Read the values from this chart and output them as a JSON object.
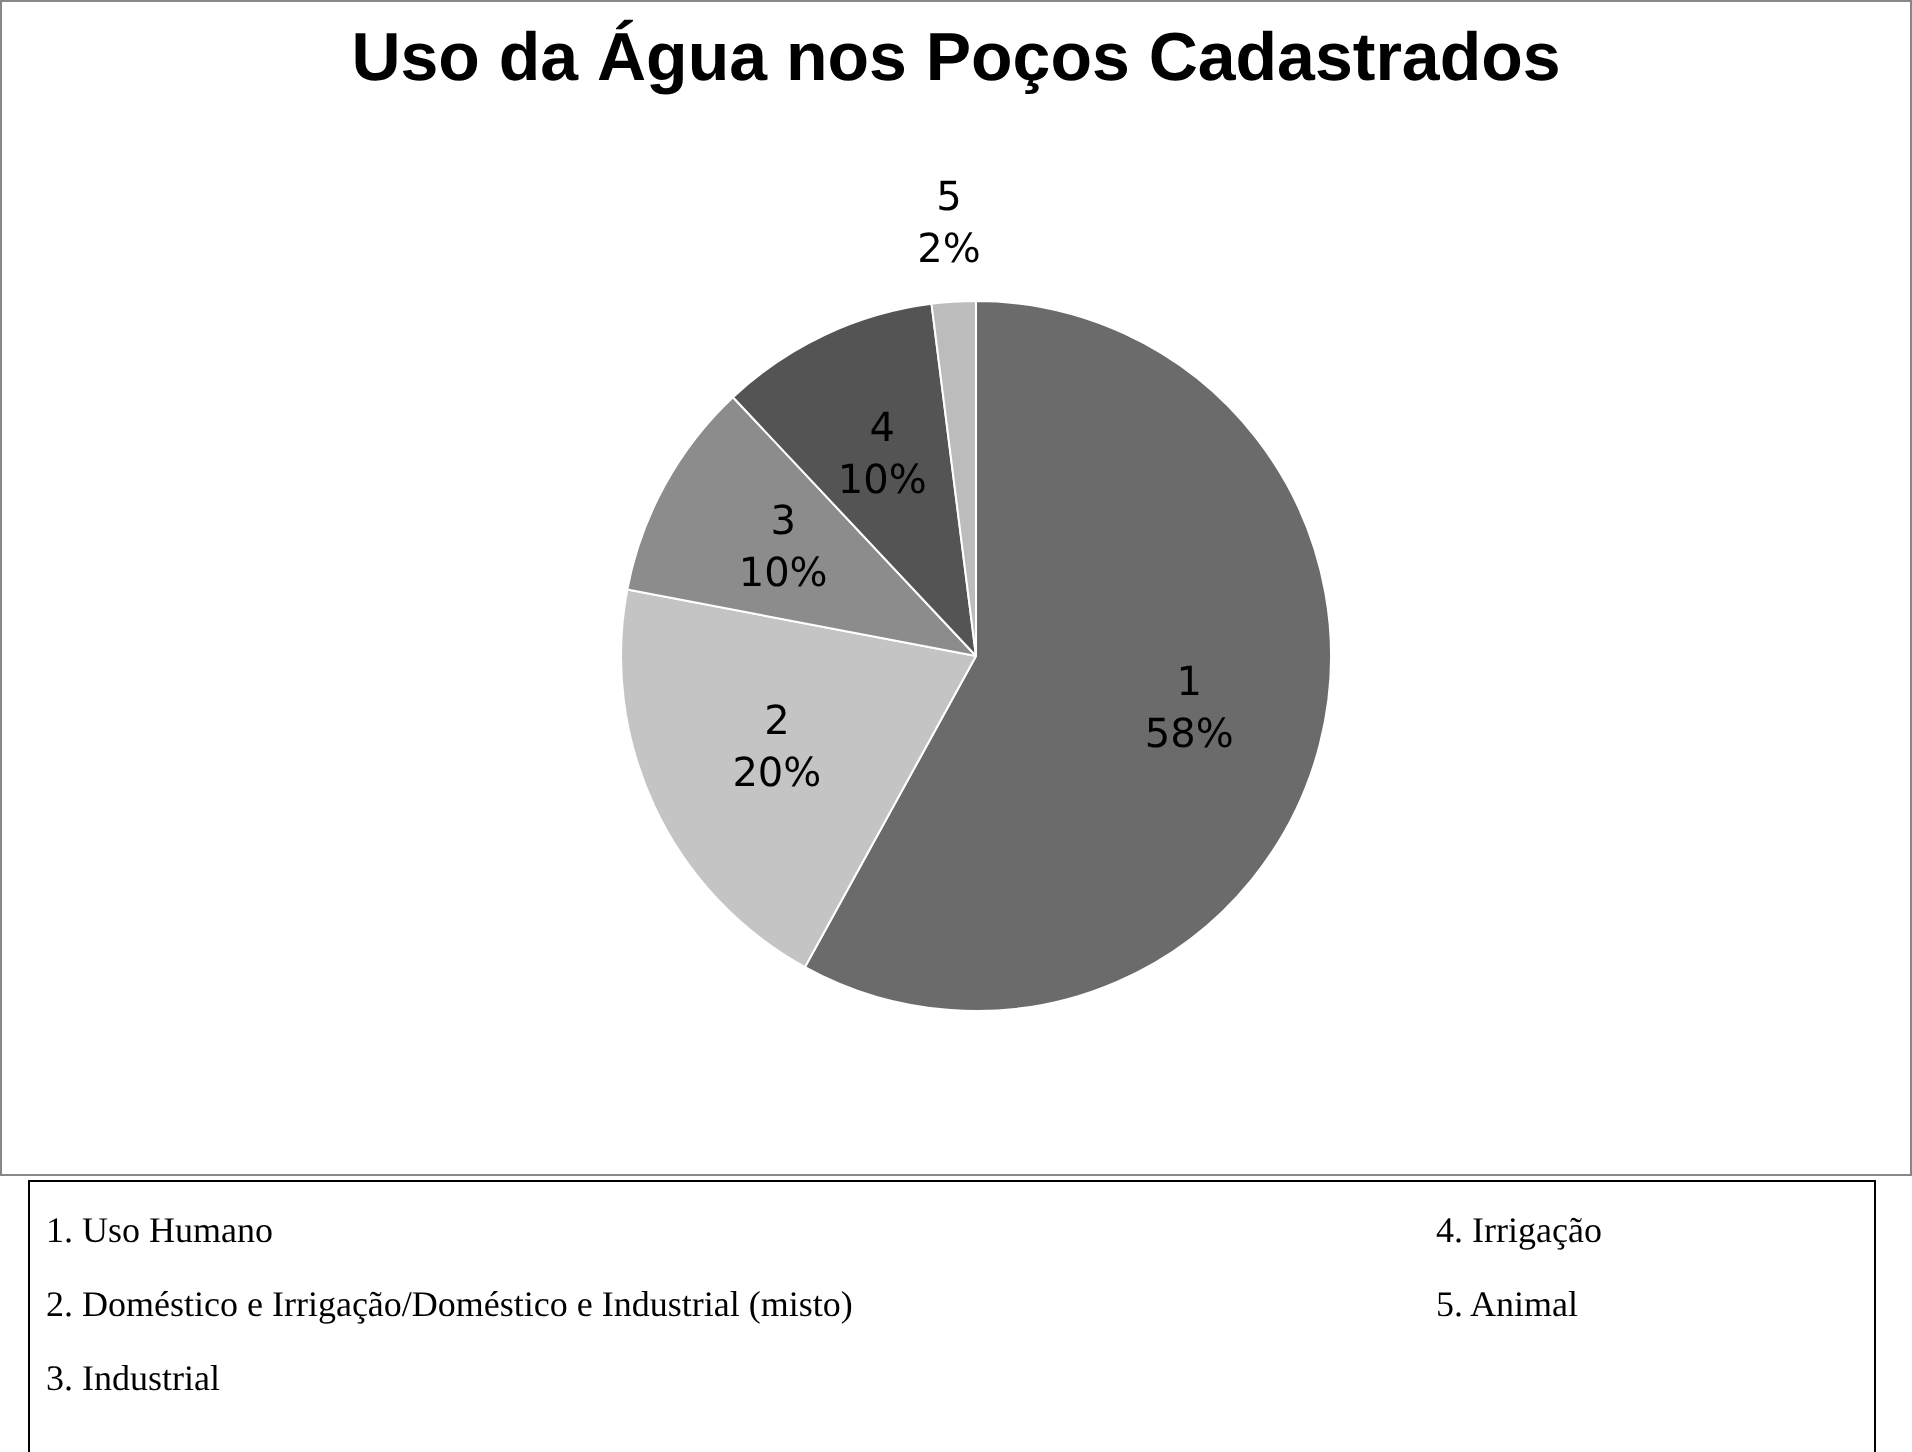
{
  "chart_data": {
    "type": "pie",
    "title": "Uso da Água nos Poços Cadastrados",
    "categories": [
      "1",
      "2",
      "3",
      "4",
      "5"
    ],
    "values": [
      58,
      20,
      10,
      10,
      2
    ],
    "colors": [
      "#6b6b6b",
      "#c4c4c4",
      "#8c8c8c",
      "#545454",
      "#bcbcbc"
    ],
    "value_labels": [
      "58%",
      "20%",
      "10%",
      "10%",
      "2%"
    ],
    "annotations": [
      "1. Uso Humano",
      "2. Doméstico e Irrigação/Doméstico e Industrial (misto)",
      "3. Industrial",
      "4. Irrigação",
      "5. Animal"
    ]
  }
}
